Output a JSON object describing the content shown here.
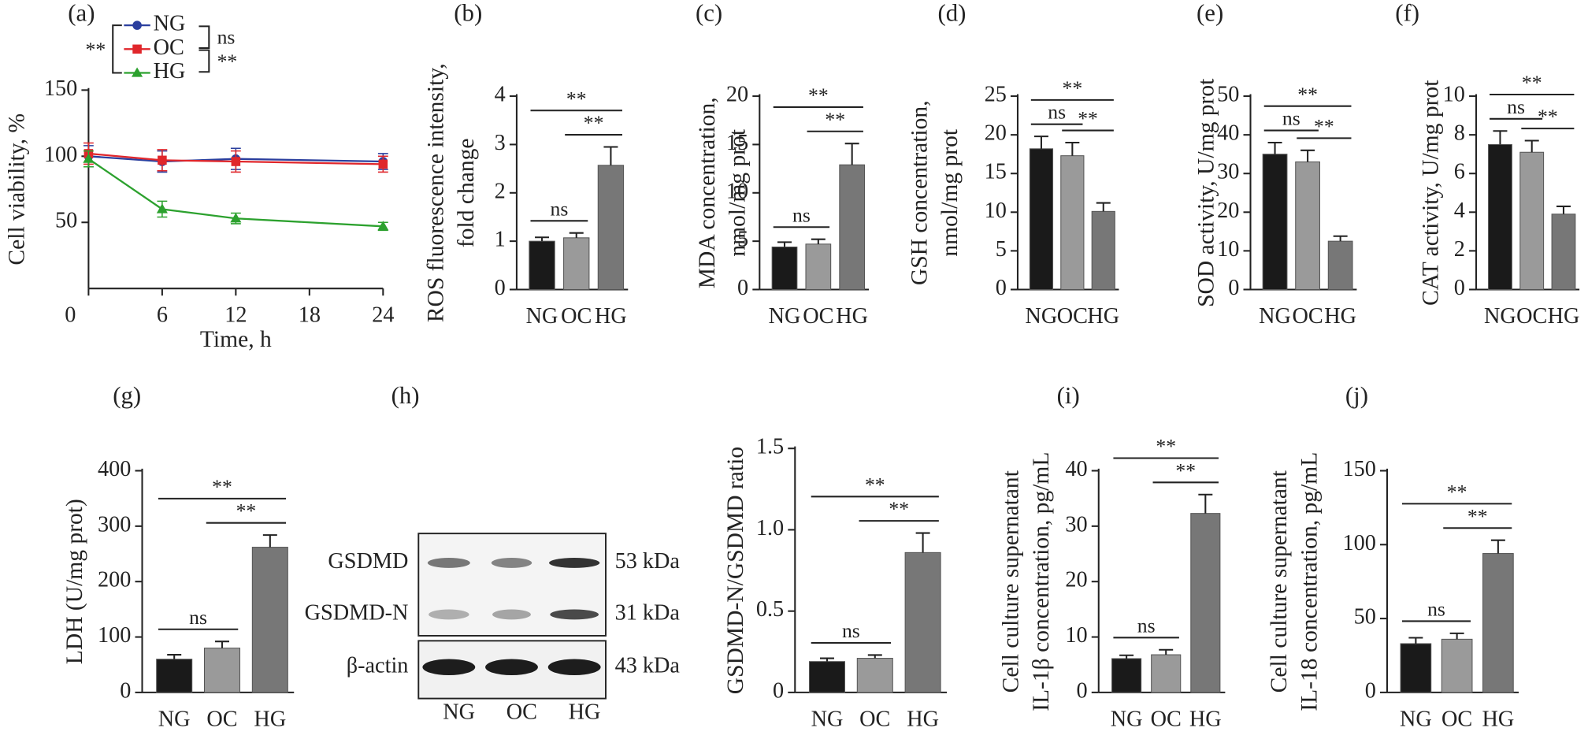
{
  "chart_data": [
    {
      "type": "line",
      "panel": "(a)",
      "ylabel": [
        "Cell viability, %"
      ],
      "xlabel": "Time, h",
      "x": [
        0,
        6,
        12,
        24
      ],
      "xlim": [
        0,
        24
      ],
      "xticks": [
        0,
        6,
        12,
        18,
        24
      ],
      "ylim": [
        0,
        150
      ],
      "yticks": [
        50,
        100,
        150
      ],
      "series": [
        {
          "name": "NG",
          "color": "#2b3f9e",
          "marker": "circle",
          "values": [
            100,
            96,
            98,
            96
          ],
          "errors": [
            8,
            8,
            8,
            6
          ]
        },
        {
          "name": "OC",
          "color": "#e0262b",
          "marker": "square",
          "values": [
            102,
            97,
            96,
            94
          ],
          "errors": [
            8,
            8,
            8,
            6
          ]
        },
        {
          "name": "HG",
          "color": "#2ca12e",
          "marker": "triangle",
          "values": [
            98,
            60,
            53,
            47
          ],
          "errors": [
            6,
            6,
            4,
            3
          ]
        }
      ],
      "significance": [
        {
          "label": "ns",
          "pair": [
            "NG",
            "OC"
          ]
        },
        {
          "label": "**",
          "pair": [
            "OC",
            "HG"
          ]
        },
        {
          "label": "**",
          "pair": [
            "NG",
            "HG"
          ]
        }
      ]
    },
    {
      "type": "bar",
      "panel": "(b)",
      "ylabel": [
        "ROS fluorescence intensity,",
        "fold change"
      ],
      "categories": [
        "NG",
        "OC",
        "HG"
      ],
      "colors": [
        "#1a1a1a",
        "#9a9a9a",
        "#777777"
      ],
      "values": [
        1.0,
        1.07,
        2.57
      ],
      "errors": [
        0.08,
        0.1,
        0.38
      ],
      "ylim": [
        0,
        4
      ],
      "yticks": [
        0,
        1,
        2,
        3,
        4
      ],
      "significance": [
        {
          "label": "ns",
          "pair": [
            "NG",
            "OC"
          ]
        },
        {
          "label": "**",
          "pair": [
            "OC",
            "HG"
          ]
        },
        {
          "label": "**",
          "pair": [
            "NG",
            "HG"
          ]
        }
      ]
    },
    {
      "type": "bar",
      "panel": "(c)",
      "ylabel": [
        "MDA concentration,",
        "nmol/mg prot"
      ],
      "categories": [
        "NG",
        "OC",
        "HG"
      ],
      "colors": [
        "#1a1a1a",
        "#9a9a9a",
        "#777777"
      ],
      "values": [
        4.4,
        4.7,
        12.9
      ],
      "errors": [
        0.5,
        0.5,
        2.2
      ],
      "ylim": [
        0,
        20
      ],
      "yticks": [
        0,
        5,
        10,
        15,
        20
      ],
      "significance": [
        {
          "label": "ns",
          "pair": [
            "NG",
            "OC"
          ]
        },
        {
          "label": "**",
          "pair": [
            "OC",
            "HG"
          ]
        },
        {
          "label": "**",
          "pair": [
            "NG",
            "HG"
          ]
        }
      ]
    },
    {
      "type": "bar",
      "panel": "(d)",
      "ylabel": [
        "GSH concentration,",
        "nmol/mg prot"
      ],
      "categories": [
        "NG",
        "OC",
        "HG"
      ],
      "colors": [
        "#1a1a1a",
        "#9a9a9a",
        "#777777"
      ],
      "values": [
        18.2,
        17.3,
        10.1
      ],
      "errors": [
        1.6,
        1.7,
        1.1
      ],
      "ylim": [
        0,
        25
      ],
      "yticks": [
        0,
        5,
        10,
        15,
        20,
        25
      ],
      "significance": [
        {
          "label": "ns",
          "pair": [
            "NG",
            "OC"
          ]
        },
        {
          "label": "**",
          "pair": [
            "OC",
            "HG"
          ]
        },
        {
          "label": "**",
          "pair": [
            "NG",
            "HG"
          ]
        }
      ]
    },
    {
      "type": "bar",
      "panel": "(e)",
      "ylabel": [
        "SOD activity, U/mg prot"
      ],
      "categories": [
        "NG",
        "OC",
        "HG"
      ],
      "colors": [
        "#1a1a1a",
        "#9a9a9a",
        "#777777"
      ],
      "values": [
        35,
        33,
        12.5
      ],
      "errors": [
        3,
        3,
        1.3
      ],
      "ylim": [
        0,
        50
      ],
      "yticks": [
        0,
        10,
        20,
        30,
        40,
        50
      ],
      "significance": [
        {
          "label": "ns",
          "pair": [
            "NG",
            "OC"
          ]
        },
        {
          "label": "**",
          "pair": [
            "OC",
            "HG"
          ]
        },
        {
          "label": "**",
          "pair": [
            "NG",
            "HG"
          ]
        }
      ]
    },
    {
      "type": "bar",
      "panel": "(f)",
      "ylabel": [
        "CAT activity, U/mg prot"
      ],
      "categories": [
        "NG",
        "OC",
        "HG"
      ],
      "colors": [
        "#1a1a1a",
        "#9a9a9a",
        "#777777"
      ],
      "values": [
        7.5,
        7.1,
        3.9
      ],
      "errors": [
        0.7,
        0.6,
        0.4
      ],
      "ylim": [
        0,
        10
      ],
      "yticks": [
        0,
        2,
        4,
        6,
        8,
        10
      ],
      "significance": [
        {
          "label": "ns",
          "pair": [
            "NG",
            "OC"
          ]
        },
        {
          "label": "**",
          "pair": [
            "OC",
            "HG"
          ]
        },
        {
          "label": "**",
          "pair": [
            "NG",
            "HG"
          ]
        }
      ]
    },
    {
      "type": "bar",
      "panel": "(g)",
      "ylabel": [
        "LDH (U/mg prot)"
      ],
      "categories": [
        "NG",
        "OC",
        "HG"
      ],
      "colors": [
        "#1a1a1a",
        "#9a9a9a",
        "#777777"
      ],
      "values": [
        60,
        80,
        262
      ],
      "errors": [
        8,
        12,
        22
      ],
      "ylim": [
        0,
        400
      ],
      "yticks": [
        0,
        100,
        200,
        300,
        400
      ],
      "significance": [
        {
          "label": "ns",
          "pair": [
            "NG",
            "OC"
          ]
        },
        {
          "label": "**",
          "pair": [
            "OC",
            "HG"
          ]
        },
        {
          "label": "**",
          "pair": [
            "NG",
            "HG"
          ]
        }
      ]
    },
    {
      "type": "bar",
      "panel": "(h)",
      "ylabel": [
        "GSDMD-N/GSDMD ratio"
      ],
      "blot_bands": [
        "GSDMD",
        "GSDMD-N",
        "β-actin"
      ],
      "blot_sizes": [
        "53 kDa",
        "31 kDa",
        "43 kDa"
      ],
      "blot_lanes": [
        "NG",
        "OC",
        "HG"
      ],
      "categories": [
        "NG",
        "OC",
        "HG"
      ],
      "colors": [
        "#1a1a1a",
        "#9a9a9a",
        "#777777"
      ],
      "values": [
        0.19,
        0.21,
        0.86
      ],
      "errors": [
        0.02,
        0.02,
        0.12
      ],
      "ylim": [
        0,
        1.5
      ],
      "yticks": [
        0,
        0.5,
        {
          "value": 1,
          "label": "1.0"
        },
        1.5
      ],
      "significance": [
        {
          "label": "ns",
          "pair": [
            "NG",
            "OC"
          ]
        },
        {
          "label": "**",
          "pair": [
            "OC",
            "HG"
          ]
        },
        {
          "label": "**",
          "pair": [
            "NG",
            "HG"
          ]
        }
      ]
    },
    {
      "type": "bar",
      "panel": "(i)",
      "ylabel": [
        "Cell culture supernatant",
        "IL-1β concentration, pg/mL"
      ],
      "categories": [
        "NG",
        "OC",
        "HG"
      ],
      "colors": [
        "#1a1a1a",
        "#9a9a9a",
        "#777777"
      ],
      "values": [
        6.1,
        6.8,
        32.3
      ],
      "errors": [
        0.6,
        0.9,
        3.4
      ],
      "ylim": [
        0,
        40
      ],
      "yticks": [
        0,
        10,
        20,
        30,
        40
      ],
      "significance": [
        {
          "label": "ns",
          "pair": [
            "NG",
            "OC"
          ]
        },
        {
          "label": "**",
          "pair": [
            "OC",
            "HG"
          ]
        },
        {
          "label": "**",
          "pair": [
            "NG",
            "HG"
          ]
        }
      ]
    },
    {
      "type": "bar",
      "panel": "(j)",
      "ylabel": [
        "Cell culture supernatant",
        "IL-18 concentration, pg/mL"
      ],
      "categories": [
        "NG",
        "OC",
        "HG"
      ],
      "colors": [
        "#1a1a1a",
        "#9a9a9a",
        "#777777"
      ],
      "values": [
        33,
        36,
        94
      ],
      "errors": [
        4,
        4,
        9
      ],
      "ylim": [
        0,
        150
      ],
      "yticks": [
        0,
        50,
        100,
        150
      ],
      "significance": [
        {
          "label": "ns",
          "pair": [
            "NG",
            "OC"
          ]
        },
        {
          "label": "**",
          "pair": [
            "OC",
            "HG"
          ]
        },
        {
          "label": "**",
          "pair": [
            "NG",
            "HG"
          ]
        }
      ]
    }
  ]
}
